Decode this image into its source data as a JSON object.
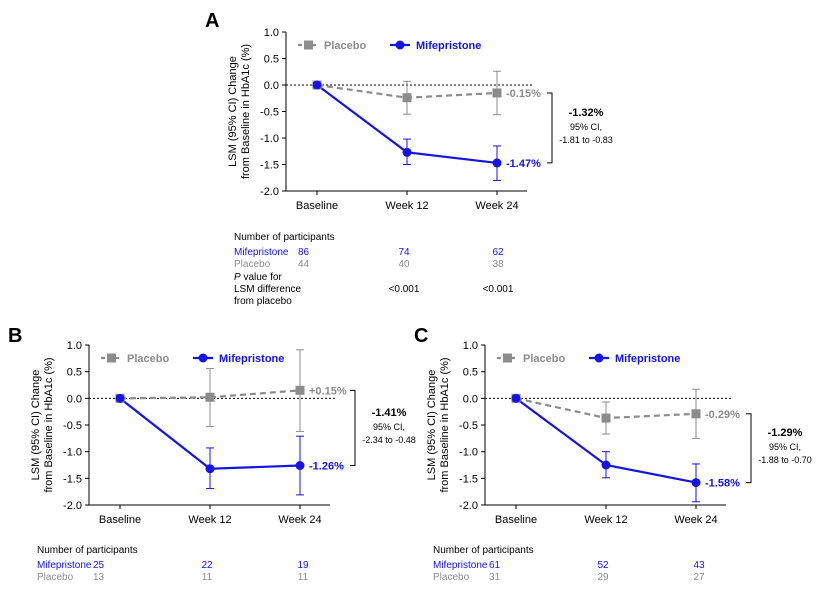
{
  "figure": {
    "panels": [
      {
        "letter": "A",
        "ylabel_line1": "LSM (95% CI) Change",
        "ylabel_line2": "from Baseline in HbA1c (%)",
        "legend": {
          "placebo": "Placebo",
          "mife": "Mifepristone"
        },
        "end_labels": {
          "placebo": "-0.15%",
          "mife": "-1.47%"
        },
        "bracket": {
          "diff": "-1.32%",
          "ci_label": "95% CI,",
          "ci": "-1.81 to -0.83"
        },
        "table": {
          "header": "Number of participants",
          "mife_label": "Mifepristone",
          "mife_n": [
            "86",
            "74",
            "62"
          ],
          "placebo_label": "Placebo",
          "placebo_n": [
            "44",
            "40",
            "38"
          ],
          "p_label": [
            "P value for",
            "LSM difference",
            "from placebo"
          ],
          "p_italic": "P",
          "p_values": [
            "<0.001",
            "<0.001"
          ]
        }
      },
      {
        "letter": "B",
        "ylabel_line1": "LSM (95% CI) Change",
        "ylabel_line2": "from Baseline in HbA1c (%)",
        "legend": {
          "placebo": "Placebo",
          "mife": "Mifepristone"
        },
        "end_labels": {
          "placebo": "+0.15%",
          "mife": "-1.26%"
        },
        "bracket": {
          "diff": "-1.41%",
          "ci_label": "95% CI,",
          "ci": "-2.34 to -0.48"
        },
        "table": {
          "header": "Number of participants",
          "mife_label": "Mifepristone",
          "mife_n": [
            "25",
            "22",
            "19"
          ],
          "placebo_label": "Placebo",
          "placebo_n": [
            "13",
            "11",
            "11"
          ]
        }
      },
      {
        "letter": "C",
        "ylabel_line1": "LSM (95% CI) Change",
        "ylabel_line2": "from Baseline in HbA1c (%)",
        "legend": {
          "placebo": "Placebo",
          "mife": "Mifepristone"
        },
        "end_labels": {
          "placebo": "-0.29%",
          "mife": "-1.58%"
        },
        "bracket": {
          "diff": "-1.29%",
          "ci_label": "95% CI,",
          "ci": "-1.88 to -0.70"
        },
        "table": {
          "header": "Number of participants",
          "mife_label": "Mifepristone",
          "mife_n": [
            "61",
            "52",
            "43"
          ],
          "placebo_label": "Placebo",
          "placebo_n": [
            "31",
            "29",
            "27"
          ]
        }
      }
    ]
  },
  "chart_data": [
    {
      "type": "line",
      "panel": "A",
      "categories": [
        "Baseline",
        "Week 12",
        "Week 24"
      ],
      "ylim": [
        -2.0,
        1.0
      ],
      "yticks": [
        "1.0",
        "0.5",
        "0.0",
        "-0.5",
        "-1.0",
        "-1.5",
        "-2.0"
      ],
      "reference_line": 0,
      "legend_position": "top",
      "series": [
        {
          "name": "Placebo",
          "color": "#8c8c8c",
          "style": "dashed",
          "marker": "square",
          "values": [
            0,
            -0.24,
            -0.15
          ],
          "ci_low": [
            0,
            -0.55,
            -0.56
          ],
          "ci_high": [
            0,
            0.07,
            0.26
          ]
        },
        {
          "name": "Mifepristone",
          "color": "#1414e6",
          "style": "solid",
          "marker": "circle",
          "values": [
            0,
            -1.27,
            -1.47
          ],
          "ci_low": [
            0,
            -1.5,
            -1.8
          ],
          "ci_high": [
            0,
            -1.02,
            -1.15
          ]
        }
      ]
    },
    {
      "type": "line",
      "panel": "B",
      "categories": [
        "Baseline",
        "Week 12",
        "Week 24"
      ],
      "ylim": [
        -2.0,
        1.0
      ],
      "yticks": [
        "1.0",
        "0.5",
        "0.0",
        "-0.5",
        "-1.0",
        "-1.5",
        "-2.0"
      ],
      "reference_line": 0,
      "legend_position": "top",
      "series": [
        {
          "name": "Placebo",
          "color": "#8c8c8c",
          "style": "dashed",
          "marker": "square",
          "values": [
            0,
            0.02,
            0.15
          ],
          "ci_low": [
            0,
            -0.53,
            -0.62
          ],
          "ci_high": [
            0,
            0.56,
            0.91
          ]
        },
        {
          "name": "Mifepristone",
          "color": "#1414e6",
          "style": "solid",
          "marker": "circle",
          "values": [
            0,
            -1.32,
            -1.26
          ],
          "ci_low": [
            0,
            -1.69,
            -1.81
          ],
          "ci_high": [
            0,
            -0.93,
            -0.71
          ]
        }
      ]
    },
    {
      "type": "line",
      "panel": "C",
      "categories": [
        "Baseline",
        "Week 12",
        "Week 24"
      ],
      "ylim": [
        -2.0,
        1.0
      ],
      "yticks": [
        "1.0",
        "0.5",
        "0.0",
        "-0.5",
        "-1.0",
        "-1.5",
        "-2.0"
      ],
      "reference_line": 0,
      "legend_position": "top",
      "series": [
        {
          "name": "Placebo",
          "color": "#8c8c8c",
          "style": "dashed",
          "marker": "square",
          "values": [
            0,
            -0.37,
            -0.29
          ],
          "ci_low": [
            0,
            -0.67,
            -0.75
          ],
          "ci_high": [
            0,
            -0.07,
            0.17
          ]
        },
        {
          "name": "Mifepristone",
          "color": "#1414e6",
          "style": "solid",
          "marker": "circle",
          "values": [
            0,
            -1.25,
            -1.58
          ],
          "ci_low": [
            0,
            -1.49,
            -1.94
          ],
          "ci_high": [
            0,
            -1.0,
            -1.23
          ]
        }
      ]
    }
  ]
}
